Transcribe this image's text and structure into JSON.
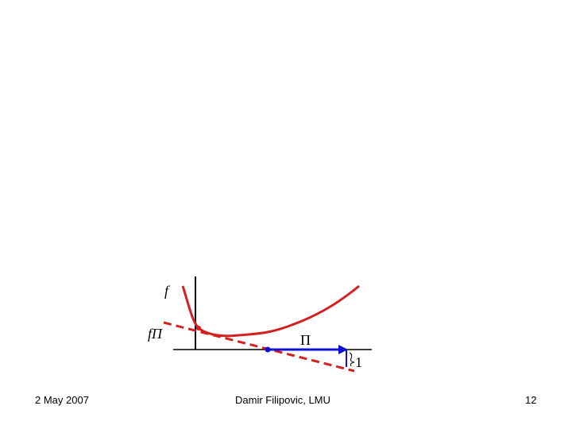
{
  "figure": {
    "label_f": "f",
    "label_fpi": "fΠ",
    "label_pi": "Π",
    "label_one": "1"
  },
  "footer": {
    "date": "2 May 2007",
    "author": "Damir Filipovic, LMU",
    "page": "12"
  }
}
